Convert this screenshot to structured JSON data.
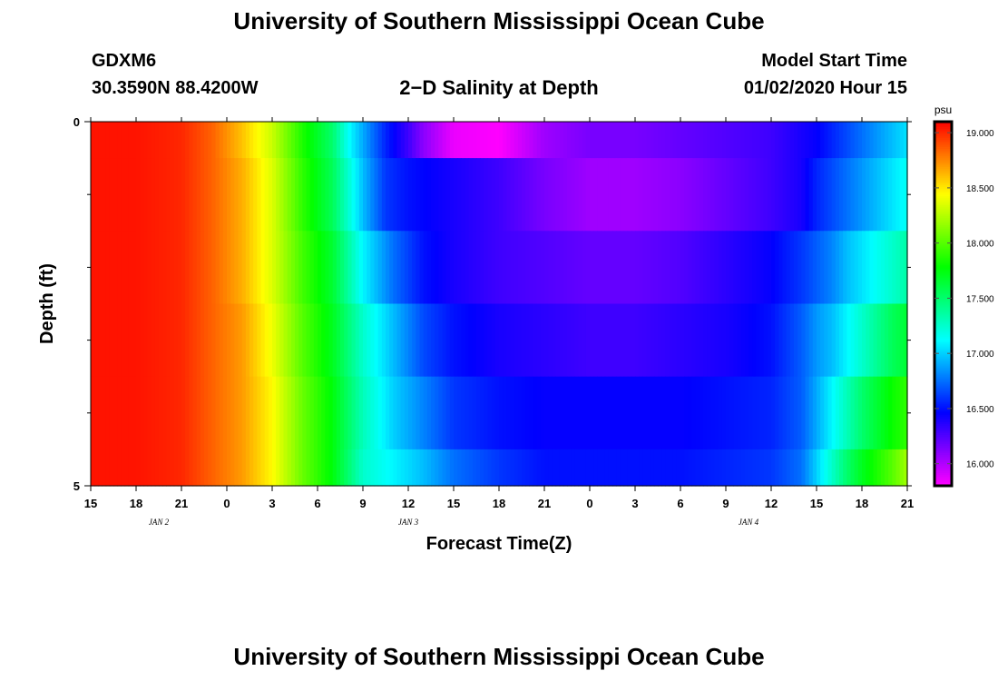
{
  "header": {
    "title_top": "University of Southern Mississippi Ocean Cube",
    "title_bottom": "University of Southern Mississippi Ocean Cube",
    "station_id": "GDXM6",
    "coordinates": "30.3590N 88.4200W",
    "chart_title": "2−D Salinity at Depth",
    "model_start_label": "Model Start Time",
    "model_start_value": "01/02/2020 Hour 15"
  },
  "chart_data": {
    "type": "heatmap",
    "title": "2−D Salinity at Depth",
    "xlabel": "Forecast Time(Z)",
    "ylabel": "Depth (ft)",
    "x_tick_labels": [
      "15",
      "18",
      "21",
      "0",
      "3",
      "6",
      "9",
      "12",
      "15",
      "18",
      "21",
      "0",
      "3",
      "6",
      "9",
      "12",
      "15",
      "18",
      "21"
    ],
    "date_labels": [
      {
        "text": "JAN 2",
        "tick_index": 1.5
      },
      {
        "text": "JAN 3",
        "tick_index": 7
      },
      {
        "text": "JAN 4",
        "tick_index": 14.5
      }
    ],
    "forecast_hours_range": [
      0,
      54
    ],
    "depth_range_ft": [
      0,
      5
    ],
    "y_tick_labels": [
      "0",
      "5"
    ],
    "y_minor_ticks": [
      1,
      2,
      3,
      4
    ],
    "depths_ft": [
      0.5,
      1.5,
      2.5,
      3.5,
      4.5
    ],
    "colorbar": {
      "unit": "psu",
      "min": 15.8,
      "max": 19.1,
      "ticks": [
        16.0,
        16.5,
        17.0,
        17.5,
        18.0,
        18.5,
        19.0
      ],
      "tick_labels": [
        "16.000",
        "16.500",
        "17.000",
        "17.500",
        "18.000",
        "18.500",
        "19.000"
      ]
    },
    "salinity_rows": [
      {
        "depth_ft": 0.25,
        "hours": [
          0,
          3,
          6,
          8,
          10,
          12,
          14,
          16,
          17,
          18,
          19.5,
          21,
          22,
          24,
          27,
          30,
          33,
          36,
          39,
          42,
          45,
          48,
          49,
          50,
          51,
          52,
          53,
          54
        ],
        "values": [
          19.05,
          19.05,
          19.0,
          18.85,
          18.6,
          18.3,
          17.85,
          17.5,
          17.15,
          16.9,
          16.55,
          16.3,
          16.1,
          15.85,
          15.8,
          16.05,
          16.15,
          16.15,
          16.2,
          16.25,
          16.3,
          16.45,
          16.55,
          16.65,
          16.75,
          16.85,
          16.95,
          17.05
        ]
      },
      {
        "depth_ft": 1.0,
        "hours": [
          0,
          3,
          6,
          8,
          10,
          12,
          14,
          16,
          17,
          18,
          19.5,
          21,
          24,
          27,
          30,
          33,
          36,
          39,
          42,
          45,
          47,
          48,
          49,
          50,
          51,
          52,
          53,
          54
        ],
        "values": [
          19.05,
          19.05,
          19.0,
          18.85,
          18.65,
          18.35,
          17.9,
          17.55,
          17.25,
          16.95,
          16.6,
          16.5,
          16.4,
          16.3,
          16.15,
          16.05,
          16.05,
          16.1,
          16.2,
          16.3,
          16.4,
          16.55,
          16.65,
          16.75,
          16.85,
          16.95,
          17.05,
          17.15
        ]
      },
      {
        "depth_ft": 2.0,
        "hours": [
          0,
          3,
          6,
          8,
          10,
          12,
          14,
          16,
          18,
          20,
          22,
          24,
          27,
          30,
          33,
          36,
          39,
          42,
          45,
          47,
          48,
          49,
          50,
          51,
          52,
          53,
          54
        ],
        "values": [
          19.05,
          19.05,
          19.0,
          18.85,
          18.65,
          18.35,
          17.95,
          17.65,
          17.1,
          16.75,
          16.5,
          16.4,
          16.3,
          16.25,
          16.2,
          16.2,
          16.25,
          16.35,
          16.45,
          16.6,
          16.7,
          16.8,
          16.95,
          17.05,
          17.15,
          17.25,
          17.35
        ]
      },
      {
        "depth_ft": 3.0,
        "hours": [
          0,
          3,
          6,
          8,
          10,
          12,
          14,
          16,
          18,
          20,
          22,
          24,
          27,
          30,
          33,
          36,
          39,
          42,
          45,
          47,
          48,
          49,
          50,
          51,
          52,
          53,
          54
        ],
        "values": [
          19.05,
          19.05,
          19.0,
          18.85,
          18.7,
          18.4,
          18.0,
          17.7,
          17.25,
          16.95,
          16.65,
          16.5,
          16.4,
          16.35,
          16.3,
          16.3,
          16.35,
          16.4,
          16.5,
          16.7,
          16.85,
          16.95,
          17.1,
          17.25,
          17.4,
          17.55,
          17.65
        ]
      },
      {
        "depth_ft": 4.0,
        "hours": [
          0,
          3,
          6,
          8,
          10,
          12,
          14,
          16,
          18,
          20,
          22,
          24,
          27,
          30,
          33,
          36,
          39,
          42,
          45,
          47,
          48,
          49,
          50,
          51,
          52,
          53,
          54
        ],
        "values": [
          19.05,
          19.05,
          19.0,
          18.85,
          18.7,
          18.45,
          18.05,
          17.75,
          17.3,
          17.0,
          16.8,
          16.6,
          16.5,
          16.45,
          16.45,
          16.45,
          16.45,
          16.5,
          16.55,
          16.7,
          16.9,
          17.1,
          17.3,
          17.5,
          17.65,
          17.8,
          17.9
        ]
      },
      {
        "depth_ft": 4.75,
        "hours": [
          0,
          3,
          6,
          8,
          10,
          12,
          14,
          16,
          18,
          20,
          22,
          24,
          27,
          30,
          33,
          36,
          39,
          42,
          45,
          47,
          48,
          49,
          50,
          51,
          52,
          53,
          54
        ],
        "values": [
          19.05,
          19.05,
          19.0,
          18.85,
          18.7,
          18.45,
          18.05,
          17.75,
          17.25,
          17.1,
          16.95,
          16.75,
          16.6,
          16.5,
          16.5,
          16.5,
          16.5,
          16.55,
          16.6,
          16.75,
          17.0,
          17.25,
          17.5,
          17.7,
          17.85,
          18.0,
          18.2
        ]
      }
    ]
  }
}
